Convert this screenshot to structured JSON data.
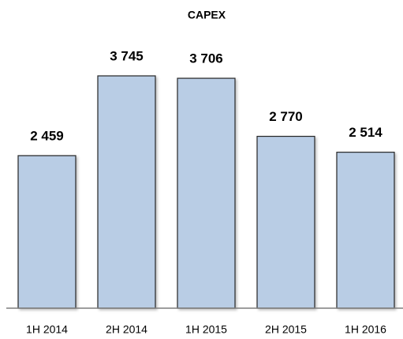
{
  "chart_data": {
    "type": "bar",
    "title": "CAPEX",
    "categories": [
      "1H 2014",
      "2H 2014",
      "1H 2015",
      "2H 2015",
      "1H 2016"
    ],
    "values": [
      2459,
      3745,
      3706,
      2770,
      2514
    ],
    "value_labels": [
      "2 459",
      "3 745",
      "3 706",
      "2 770",
      "2 514"
    ],
    "color": "#b9cde5"
  }
}
